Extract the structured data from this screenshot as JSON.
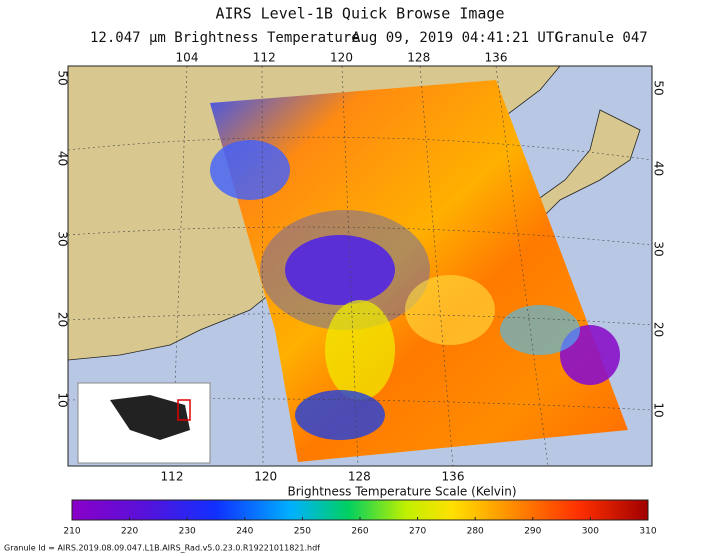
{
  "header": {
    "title": "AIRS Level-1B Quick Browse Image",
    "subtitle": [
      "12.047 μm Brightness Temperature",
      "Aug 09, 2019 04:41:21 UTC",
      "Granule 047"
    ]
  },
  "map": {
    "top_lon_labels": [
      104,
      112,
      120,
      128,
      136
    ],
    "bottom_lon_labels": [
      112,
      120,
      128,
      136
    ],
    "left_lat_labels": [
      10,
      20,
      30,
      40,
      50
    ],
    "right_lat_labels": [
      10,
      20,
      30,
      40,
      50
    ]
  },
  "colorbar": {
    "title": "Brightness Temperature Scale (Kelvin)",
    "range": [
      210,
      310
    ],
    "ticks": [
      210,
      220,
      230,
      240,
      250,
      260,
      270,
      280,
      290,
      300,
      310
    ]
  },
  "footer": {
    "granule_id": "Granule Id = AIRS.2019.08.09.047.L1B.AIRS_Rad.v5.0.23.0.R19221011821.hdf"
  }
}
